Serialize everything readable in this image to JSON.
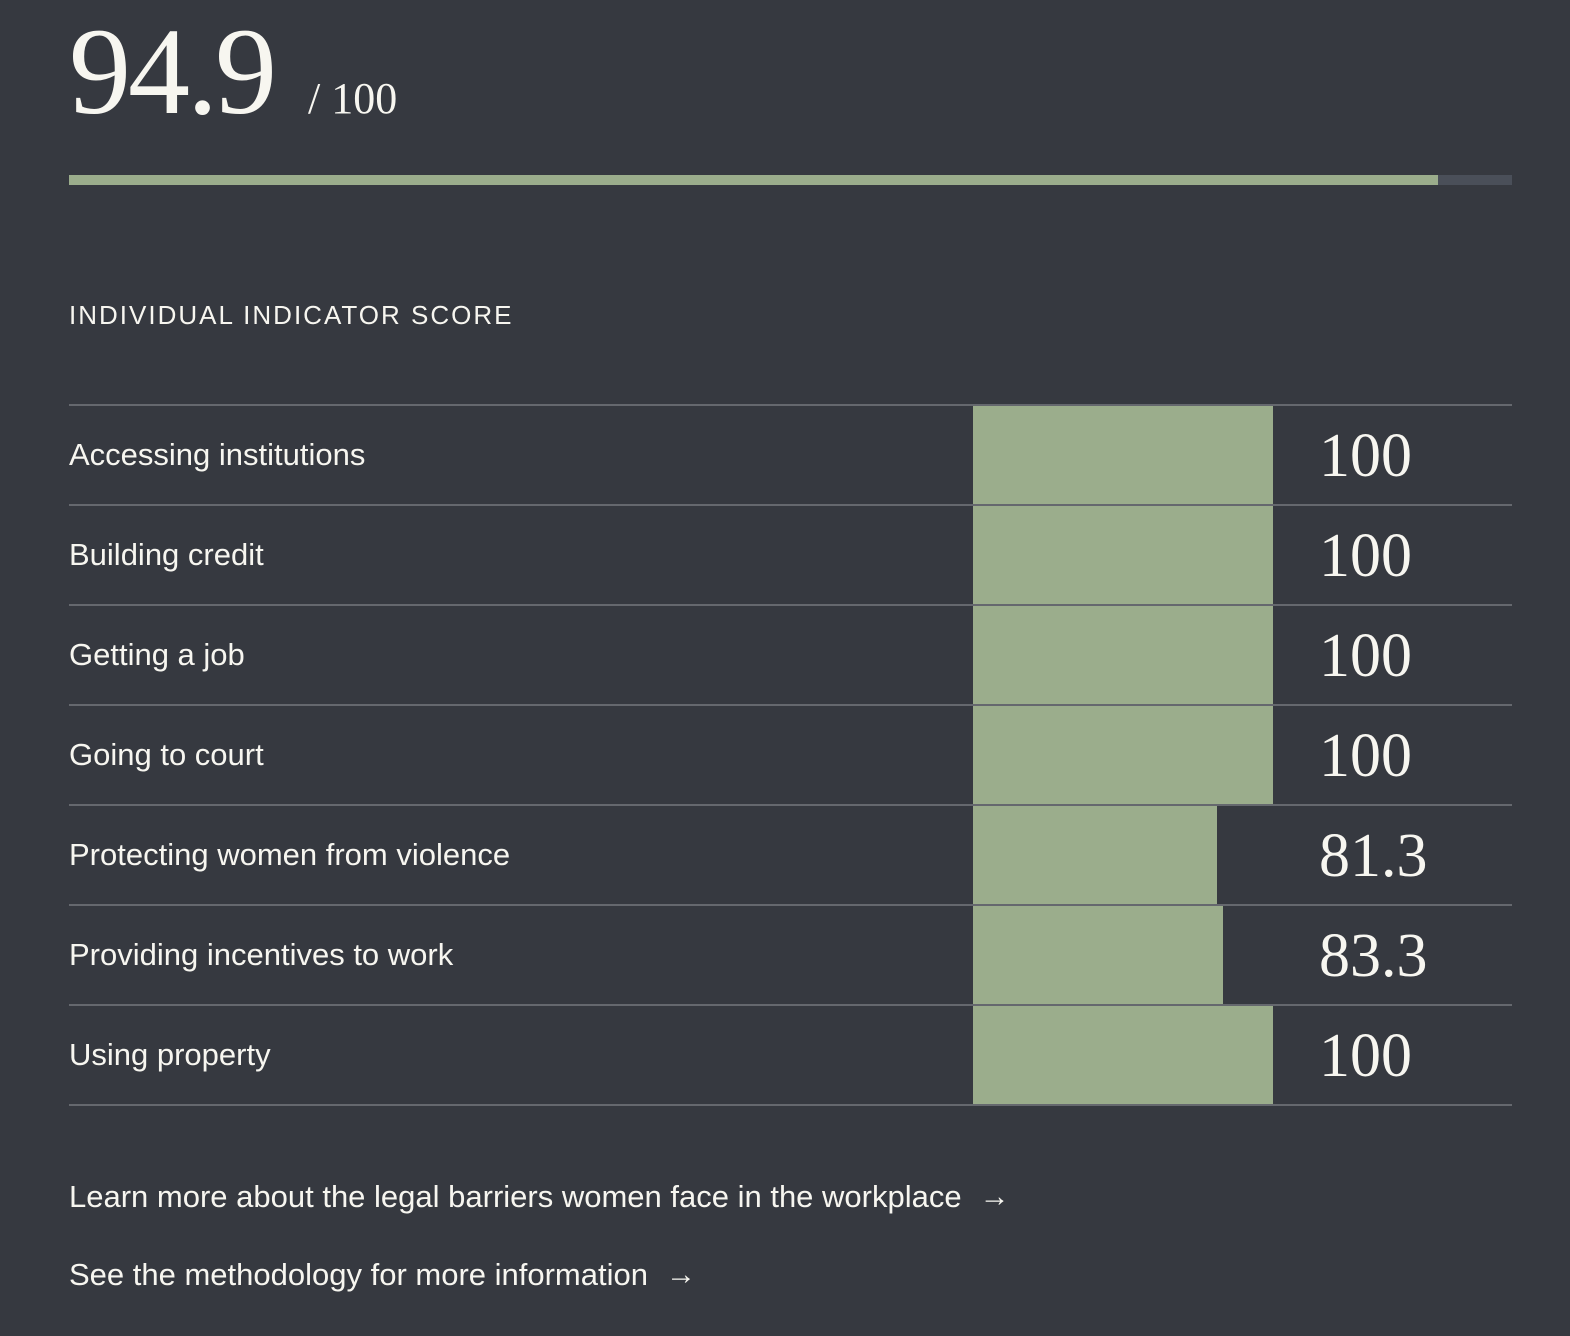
{
  "overall": {
    "score": "94.9",
    "out_of": "/ 100",
    "percent": 94.9
  },
  "section_title": "INDIVIDUAL INDICATOR SCORE",
  "indicators": [
    {
      "label": "Accessing institutions",
      "value": "100"
    },
    {
      "label": "Building credit",
      "value": "100"
    },
    {
      "label": "Getting a job",
      "value": "100"
    },
    {
      "label": "Going to court",
      "value": "100"
    },
    {
      "label": "Protecting women from violence",
      "value": "81.3"
    },
    {
      "label": "Providing incentives to work",
      "value": "83.3"
    },
    {
      "label": "Using property",
      "value": "100"
    }
  ],
  "links": [
    {
      "label": "Learn more about the legal barriers women face in the workplace",
      "icon": "arrow-right-icon"
    },
    {
      "label": "See the methodology for more information",
      "icon": "arrow-right-icon"
    }
  ],
  "colors": {
    "background": "#363940",
    "bar": "#9bad8c",
    "track": "#4a4f59",
    "text": "#f7f6f0",
    "divider": "#65686e"
  },
  "chart_data": {
    "type": "bar",
    "title": "INDIVIDUAL INDICATOR SCORE",
    "orientation": "horizontal",
    "categories": [
      "Accessing institutions",
      "Building credit",
      "Getting a job",
      "Going to court",
      "Protecting women from violence",
      "Providing incentives to work",
      "Using property"
    ],
    "values": [
      100,
      100,
      100,
      100,
      81.3,
      83.3,
      100
    ],
    "xlim": [
      0,
      100
    ],
    "overall_score": 94.9,
    "overall_max": 100
  }
}
